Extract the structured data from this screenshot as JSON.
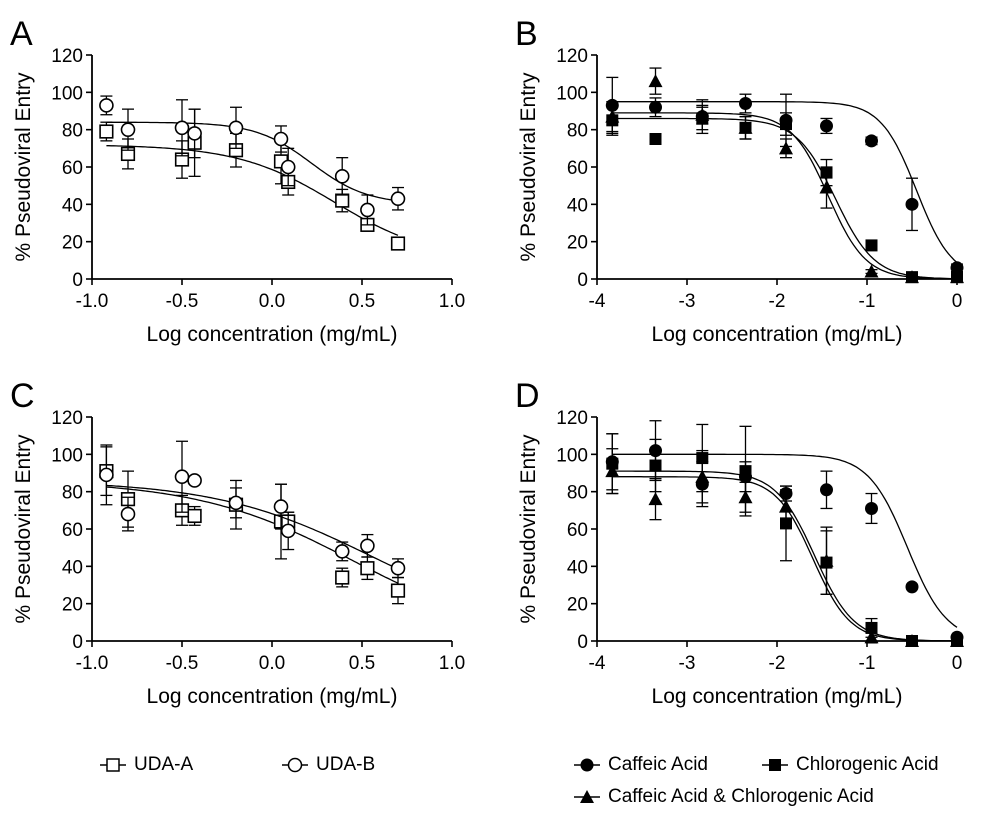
{
  "chart_data": [
    {
      "panel": "A",
      "type": "scatter",
      "xlabel": "Log concentration (mg/mL)",
      "ylabel": "% Pseudoviral Entry",
      "xlim": [
        -1.0,
        1.0
      ],
      "ylim": [
        0,
        120
      ],
      "xticks": [
        "-1.0",
        "-0.5",
        "0.0",
        "0.5",
        "1.0"
      ],
      "yticks": [
        "0",
        "20",
        "40",
        "60",
        "80",
        "100",
        "120"
      ],
      "series": [
        {
          "name": "UDA-A",
          "marker": "square-open",
          "x": [
            -0.92,
            -0.8,
            -0.5,
            -0.43,
            -0.2,
            0.05,
            0.09,
            0.39,
            0.53,
            0.7
          ],
          "y": [
            79,
            67,
            64,
            73,
            69,
            63,
            52,
            42,
            29,
            19
          ],
          "err": [
            5,
            8,
            10,
            18,
            9,
            12,
            7,
            6,
            3,
            1
          ],
          "fit": {
            "top": 72,
            "bottom": 10,
            "logec50": 0.35,
            "hill": 1.6
          }
        },
        {
          "name": "UDA-B",
          "marker": "circle-open",
          "x": [
            -0.92,
            -0.8,
            -0.5,
            -0.43,
            -0.2,
            0.05,
            0.09,
            0.39,
            0.53,
            0.7
          ],
          "y": [
            93,
            80,
            81,
            78,
            81,
            75,
            60,
            55,
            37,
            43
          ],
          "err": [
            5,
            11,
            15,
            13,
            11,
            7,
            10,
            10,
            8,
            6
          ],
          "fit": {
            "top": 84,
            "bottom": 40,
            "logec50": 0.22,
            "hill": 2.8
          }
        }
      ]
    },
    {
      "panel": "B",
      "type": "scatter",
      "xlabel": "Log concentration (mg/mL)",
      "ylabel": "% Pseudoviral Entry",
      "xlim": [
        -4,
        0
      ],
      "ylim": [
        0,
        120
      ],
      "xticks": [
        "-4",
        "-3",
        "-2",
        "-1",
        "0"
      ],
      "yticks": [
        "0",
        "20",
        "40",
        "60",
        "80",
        "100",
        "120"
      ],
      "series": [
        {
          "name": "Caffeic Acid",
          "marker": "circle-filled",
          "x": [
            -3.83,
            -3.35,
            -2.83,
            -2.35,
            -1.9,
            -1.45,
            -0.95,
            -0.5,
            0.0
          ],
          "y": [
            93,
            92,
            87,
            94,
            85,
            82,
            74,
            40,
            6
          ],
          "err": [
            15,
            5,
            9,
            5,
            14,
            4,
            2,
            14,
            2
          ],
          "fit": {
            "top": 95,
            "bottom": 0,
            "logec50": -0.45,
            "hill": 2.2
          }
        },
        {
          "name": "Chlorogenic Acid",
          "marker": "square-filled",
          "x": [
            -3.83,
            -3.35,
            -2.83,
            -2.35,
            -1.9,
            -1.45,
            -0.95,
            -0.5,
            0.0
          ],
          "y": [
            85,
            75,
            86,
            81,
            83,
            57,
            18,
            1,
            1
          ],
          "err": [
            8,
            1,
            6,
            6,
            6,
            7,
            2,
            1,
            1
          ],
          "fit": {
            "top": 86,
            "bottom": 0,
            "logec50": -1.35,
            "hill": 2.0
          }
        },
        {
          "name": "Caffeic Acid & Chlorogenic Acid",
          "marker": "triangle-filled",
          "x": [
            -3.83,
            -3.35,
            -2.83,
            -2.35,
            -1.9,
            -1.45,
            -0.95,
            -0.5,
            0.0
          ],
          "y": [
            87,
            106,
            88,
            81,
            70,
            49,
            4,
            1,
            1
          ],
          "err": [
            8,
            7,
            5,
            6,
            5,
            11,
            1,
            1,
            1
          ],
          "fit": {
            "top": 89,
            "bottom": 0,
            "logec50": -1.43,
            "hill": 2.1
          }
        }
      ]
    },
    {
      "panel": "C",
      "type": "scatter",
      "xlabel": "Log concentration (mg/mL)",
      "ylabel": "% Pseudoviral Entry",
      "xlim": [
        -1.0,
        1.0
      ],
      "ylim": [
        0,
        120
      ],
      "xticks": [
        "-1.0",
        "-0.5",
        "0.0",
        "0.5",
        "1.0"
      ],
      "yticks": [
        "0",
        "20",
        "40",
        "60",
        "80",
        "100",
        "120"
      ],
      "series": [
        {
          "name": "UDA-A",
          "marker": "square-open",
          "x": [
            -0.92,
            -0.8,
            -0.5,
            -0.43,
            -0.2,
            0.05,
            0.09,
            0.39,
            0.53,
            0.7
          ],
          "y": [
            91,
            76,
            70,
            67,
            73,
            64,
            64,
            34,
            39,
            27
          ],
          "err": [
            13,
            15,
            8,
            5,
            13,
            20,
            5,
            5,
            6,
            7
          ],
          "fit": {
            "top": 86,
            "bottom": 0,
            "logec50": 0.45,
            "hill": 1.0
          }
        },
        {
          "name": "UDA-B",
          "marker": "circle-open",
          "x": [
            -0.92,
            -0.8,
            -0.5,
            -0.43,
            -0.2,
            0.05,
            0.09,
            0.39,
            0.53,
            0.7
          ],
          "y": [
            89,
            68,
            88,
            86,
            74,
            72,
            59,
            48,
            51,
            39
          ],
          "err": [
            16,
            9,
            19,
            1,
            8,
            12,
            10,
            5,
            6,
            5
          ],
          "fit": {
            "top": 86,
            "bottom": 5,
            "logec50": 0.55,
            "hill": 1.0
          }
        }
      ]
    },
    {
      "panel": "D",
      "type": "scatter",
      "xlabel": "Log concentration (mg/mL)",
      "ylabel": "% Pseudoviral Entry",
      "xlim": [
        -4,
        0
      ],
      "ylim": [
        0,
        120
      ],
      "xticks": [
        "-4",
        "-3",
        "-2",
        "-1",
        "0"
      ],
      "yticks": [
        "0",
        "20",
        "40",
        "60",
        "80",
        "100",
        "120"
      ],
      "series": [
        {
          "name": "Caffeic Acid",
          "marker": "circle-filled",
          "x": [
            -3.83,
            -3.35,
            -2.83,
            -2.35,
            -1.9,
            -1.45,
            -0.95,
            -0.5,
            0.0
          ],
          "y": [
            96,
            102,
            84,
            88,
            79,
            81,
            71,
            29,
            2
          ],
          "err": [
            15,
            16,
            12,
            8,
            4,
            10,
            8,
            1,
            1
          ],
          "fit": {
            "top": 100,
            "bottom": 0,
            "logec50": -0.55,
            "hill": 2.0
          }
        },
        {
          "name": "Chlorogenic Acid",
          "marker": "square-filled",
          "x": [
            -3.83,
            -3.35,
            -2.83,
            -2.35,
            -1.9,
            -1.45,
            -0.95,
            -0.5,
            0.0
          ],
          "y": [
            95,
            94,
            98,
            91,
            63,
            42,
            7,
            0,
            0
          ],
          "err": [
            16,
            14,
            18,
            24,
            20,
            17,
            5,
            1,
            1
          ],
          "fit": {
            "top": 91,
            "bottom": 0,
            "logec50": -1.58,
            "hill": 2.0
          }
        },
        {
          "name": "Caffeic Acid & Chlorogenic Acid",
          "marker": "triangle-filled",
          "x": [
            -3.83,
            -3.35,
            -2.83,
            -2.35,
            -1.9,
            -1.45,
            -0.95,
            -0.5,
            0.0
          ],
          "y": [
            91,
            76,
            88,
            77,
            72,
            43,
            2,
            0,
            0
          ],
          "err": [
            12,
            11,
            14,
            8,
            9,
            18,
            3,
            1,
            1
          ],
          "fit": {
            "top": 88,
            "bottom": 0,
            "logec50": -1.6,
            "hill": 2.1
          }
        }
      ]
    }
  ],
  "legends": {
    "left": [
      {
        "label": "UDA-A",
        "marker": "square-open"
      },
      {
        "label": "UDA-B",
        "marker": "circle-open"
      }
    ],
    "right": [
      {
        "label": "Caffeic Acid",
        "marker": "circle-filled"
      },
      {
        "label": "Chlorogenic Acid",
        "marker": "square-filled"
      },
      {
        "label": "Caffeic Acid & Chlorogenic Acid",
        "marker": "triangle-filled"
      }
    ]
  }
}
